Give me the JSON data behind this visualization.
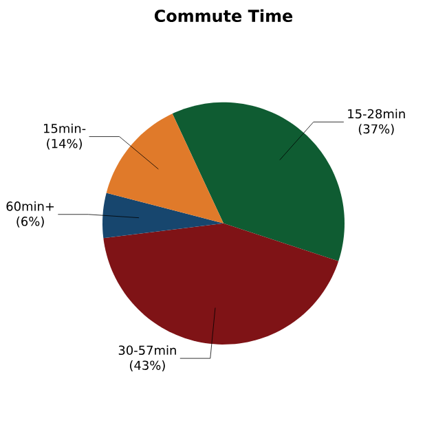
{
  "chart_data": {
    "type": "pie",
    "title": "Commute Time",
    "categories": [
      "15-28min",
      "30-57min",
      "60min+",
      "15min-"
    ],
    "values": [
      37,
      43,
      6,
      14
    ],
    "value_labels": [
      "(37%)",
      "(43%)",
      "(6%)",
      "(14%)"
    ],
    "colors": [
      "#0f5c32",
      "#7f1316",
      "#17466e",
      "#e07a2a"
    ]
  }
}
